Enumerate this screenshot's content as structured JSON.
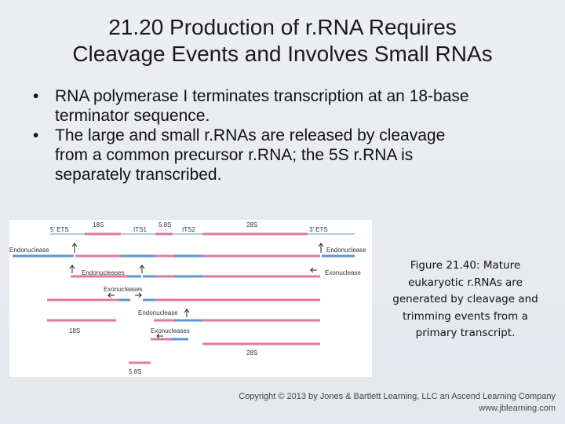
{
  "slide": {
    "title_line1": "21.20  Production of r.RNA Requires",
    "title_line2": "Cleavage Events and Involves Small RNAs",
    "bullets": [
      {
        "line1": "RNA polymerase I terminates transcription at an 18-base",
        "line2": "terminator sequence."
      },
      {
        "line1": "The large and small r.RNAs are released by cleavage",
        "line2": "from a common precursor r.RNA; the 5S r.RNA is",
        "line3": "separately transcribed."
      }
    ],
    "bullet_symbol": "•"
  },
  "figure": {
    "labels": {
      "ets5": "5' ETS",
      "s18_top": "18S",
      "its1": "ITS1",
      "s58_top": "5.8S",
      "its2": "ITS2",
      "s28_top": "28S",
      "ets3": "3' ETS",
      "endo_left": "Endonuclease",
      "endo_right": "Endonuclease",
      "endos": "Endonucleases",
      "exo_right": "Exonuclease",
      "exos1": "Exonucleases",
      "endo_mid": "Endonuclease",
      "s18_bottom": "18S",
      "exos2": "Exonucleases",
      "s28_bottom": "28S",
      "s58_bottom": "5.8S"
    },
    "colors": {
      "rna": "#e07aa0",
      "spacer": "#5b97cf",
      "arrow": "#222222"
    }
  },
  "caption": {
    "line1": "Figure 21.40: Mature",
    "line2": "eukaryotic r.RNAs are",
    "line3": "generated by cleavage and",
    "line4": "trimming events from a",
    "line5": "primary transcript."
  },
  "footer": {
    "copyright": "Copyright © 2013 by Jones & Bartlett Learning, LLC an Ascend Learning Company",
    "website": "www.jblearning.com"
  }
}
